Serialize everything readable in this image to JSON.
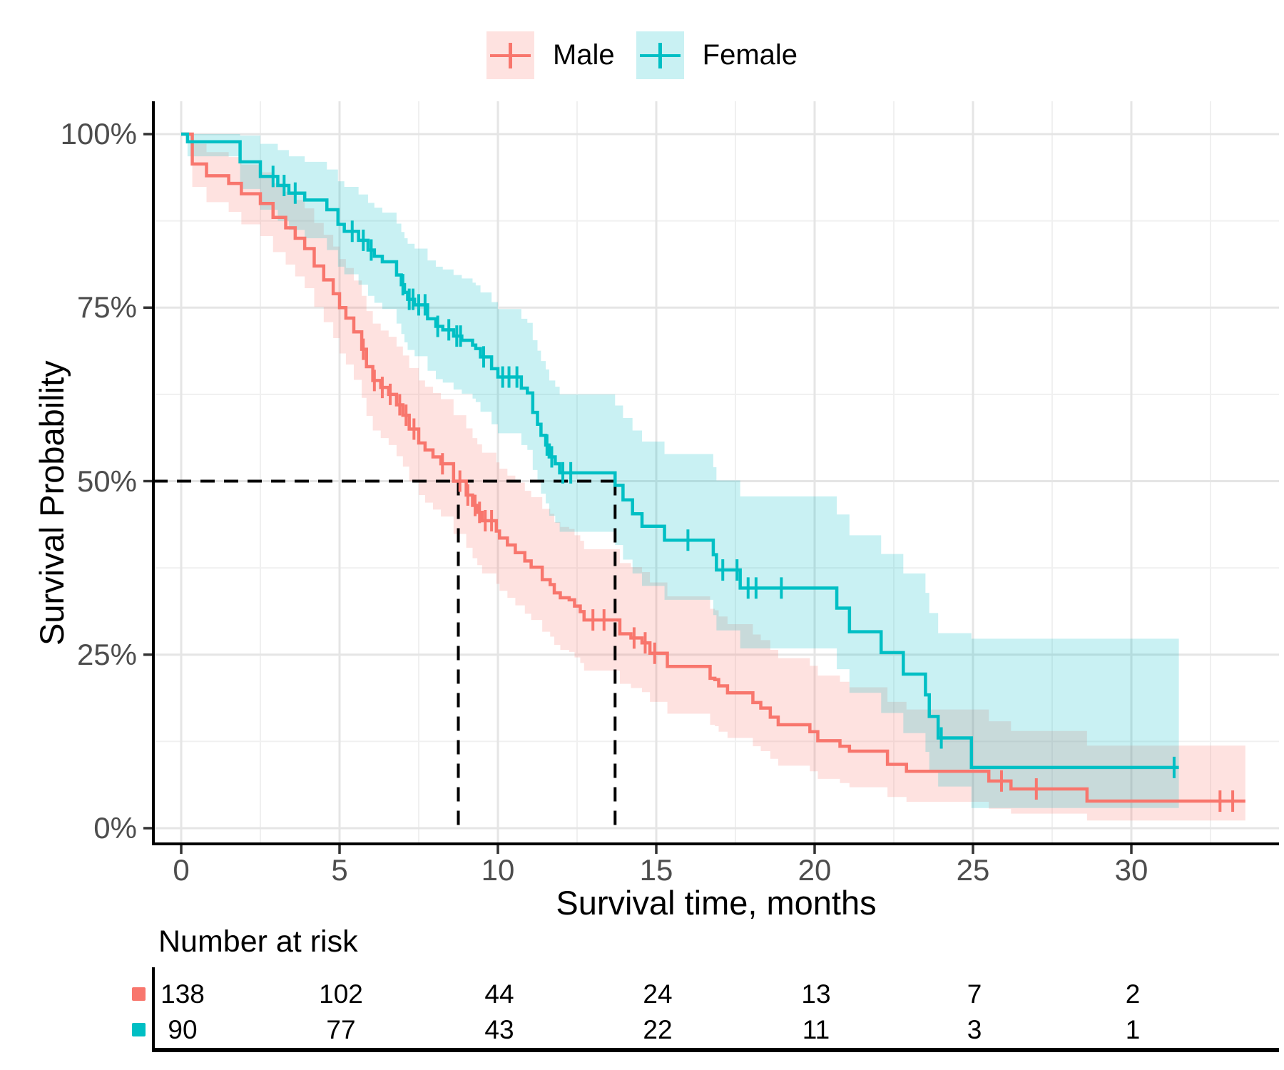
{
  "chart_data": {
    "type": "line",
    "variant": "kaplan-meier-step-with-confidence-bands",
    "title": "",
    "xlabel": "Survival time, months",
    "ylabel": "Survival Probability",
    "x_ticks": [
      0,
      5,
      10,
      15,
      20,
      25,
      30
    ],
    "x_minor_ticks": [
      2.5,
      7.5,
      12.5,
      17.5,
      22.5,
      27.5,
      32.5
    ],
    "y_ticks": [
      {
        "value": 0,
        "label": "0%"
      },
      {
        "value": 25,
        "label": "25%"
      },
      {
        "value": 50,
        "label": "50%"
      },
      {
        "value": 75,
        "label": "75%"
      },
      {
        "value": 100,
        "label": "100%"
      }
    ],
    "y_minor_ticks": [
      12.5,
      37.5,
      62.5,
      87.5
    ],
    "xlim": [
      -0.9,
      34.7
    ],
    "ylim": [
      -2.2,
      104.5
    ],
    "grid": "major-and-minor",
    "legend_position": "top-center",
    "medians": {
      "probability_pct": 50,
      "male_months": 8.75,
      "female_months": 13.7
    },
    "series": [
      {
        "name": "Male",
        "color": "#F8766D",
        "band_opacity": 0.21,
        "end_t": 33.6,
        "steps": [
          [
            0,
            100,
            100,
            100
          ],
          [
            0.35,
            95.7,
            92.4,
            98.6
          ],
          [
            0.8,
            94,
            90.2,
            97.4
          ],
          [
            1.5,
            92.9,
            88.8,
            96.7
          ],
          [
            1.9,
            91.4,
            87,
            95.6
          ],
          [
            2.5,
            90,
            85.3,
            94.5
          ],
          [
            2.9,
            88,
            83,
            92.9
          ],
          [
            3.3,
            86.5,
            81.2,
            91.7
          ],
          [
            3.6,
            85,
            79.5,
            90.5
          ],
          [
            3.9,
            83.5,
            77.8,
            89.3
          ],
          [
            4.2,
            81,
            75.1,
            87.2
          ],
          [
            4.5,
            79,
            72.9,
            85.5
          ],
          [
            4.8,
            77,
            70.6,
            83.8
          ],
          [
            5,
            75,
            68.4,
            82
          ],
          [
            5.2,
            73.5,
            66.8,
            80.7
          ],
          [
            5.45,
            71.5,
            64.6,
            78.9
          ],
          [
            5.7,
            69,
            62,
            76.7
          ],
          [
            5.85,
            66.5,
            59.4,
            74.5
          ],
          [
            6.05,
            64.5,
            57.3,
            72.7
          ],
          [
            6.3,
            63.5,
            56.2,
            71.7
          ],
          [
            6.55,
            62.5,
            55.2,
            70.8
          ],
          [
            6.8,
            61,
            53.6,
            69.4
          ],
          [
            7,
            59.5,
            52.1,
            68.1
          ],
          [
            7.2,
            57.5,
            50,
            66.3
          ],
          [
            7.5,
            55.5,
            48,
            64.5
          ],
          [
            7.7,
            54.5,
            46.9,
            63.6
          ],
          [
            7.95,
            53.5,
            45.9,
            62.7
          ],
          [
            8.2,
            52.5,
            44.9,
            61.8
          ],
          [
            8.6,
            50,
            42.4,
            59.5
          ],
          [
            9,
            48,
            40.4,
            57.6
          ],
          [
            9.2,
            46.5,
            38.9,
            56.2
          ],
          [
            9.35,
            45.5,
            37.9,
            55.3
          ],
          [
            9.5,
            44.3,
            36.7,
            54.1
          ],
          [
            9.95,
            42.8,
            35.2,
            52.7
          ],
          [
            10.05,
            41.8,
            34.2,
            51.8
          ],
          [
            10.3,
            40.8,
            33.2,
            50.8
          ],
          [
            10.55,
            39.7,
            32.1,
            49.8
          ],
          [
            10.85,
            38.5,
            30.9,
            48.6
          ],
          [
            11.05,
            37.6,
            30,
            47.7
          ],
          [
            11.4,
            35.8,
            28.3,
            46
          ],
          [
            11.65,
            35.1,
            27.6,
            45.3
          ],
          [
            11.78,
            33.9,
            26.4,
            44.1
          ],
          [
            11.97,
            33.2,
            25.7,
            43.4
          ],
          [
            12.25,
            32.9,
            25.4,
            43.1
          ],
          [
            12.42,
            32,
            24.6,
            42.2
          ],
          [
            12.6,
            31.2,
            23.8,
            41.4
          ],
          [
            12.72,
            30,
            22.7,
            40.2
          ],
          [
            13.85,
            28,
            20.8,
            38.2
          ],
          [
            14.2,
            27.4,
            20.2,
            37.6
          ],
          [
            14.55,
            26.7,
            19.6,
            36.9
          ],
          [
            14.8,
            25.2,
            18.2,
            35.4
          ],
          [
            15.35,
            23.3,
            16.5,
            33.4
          ],
          [
            16.7,
            21.6,
            14.9,
            31.6
          ],
          [
            16.85,
            21.4,
            14.7,
            31.4
          ],
          [
            16.97,
            20.5,
            13.9,
            30.5
          ],
          [
            17.25,
            19.5,
            13,
            29.4
          ],
          [
            18.05,
            18.1,
            11.8,
            27.9
          ],
          [
            18.3,
            17.3,
            11.1,
            27.1
          ],
          [
            18.6,
            16,
            10,
            25.7
          ],
          [
            18.85,
            14.9,
            9,
            24.5
          ],
          [
            19.85,
            13.9,
            8.2,
            23.4
          ],
          [
            20.1,
            12.6,
            7.1,
            22
          ],
          [
            20.8,
            11.8,
            6.5,
            21.1
          ],
          [
            21.1,
            11.1,
            5.9,
            20.3
          ],
          [
            22.3,
            9.2,
            4.5,
            18.2
          ],
          [
            22.9,
            8.2,
            3.8,
            17.1
          ],
          [
            25.5,
            6.8,
            2.8,
            15.4
          ],
          [
            26.2,
            5.65,
            2.1,
            14
          ],
          [
            28.6,
            3.9,
            1.1,
            11.9
          ]
        ],
        "censors": [
          [
            5.75,
            69
          ],
          [
            6.1,
            64.5
          ],
          [
            6.35,
            63.5
          ],
          [
            6.6,
            62.5
          ],
          [
            6.9,
            61
          ],
          [
            7.1,
            59.5
          ],
          [
            7.35,
            57.5
          ],
          [
            8.25,
            52.5
          ],
          [
            8.8,
            50
          ],
          [
            9.05,
            48
          ],
          [
            9.28,
            46.5
          ],
          [
            9.42,
            45.5
          ],
          [
            9.6,
            44.3
          ],
          [
            9.8,
            44.3
          ],
          [
            13,
            30
          ],
          [
            13.35,
            30
          ],
          [
            14.3,
            27.4
          ],
          [
            14.65,
            26.7
          ],
          [
            14.95,
            25.2
          ],
          [
            25.9,
            6.8
          ],
          [
            27,
            5.65
          ],
          [
            32.8,
            3.9
          ],
          [
            33.2,
            3.9
          ]
        ]
      },
      {
        "name": "Female",
        "color": "#00BFC4",
        "band_opacity": 0.21,
        "end_t": 31.5,
        "steps": [
          [
            0,
            100,
            100,
            100
          ],
          [
            0.2,
            98.9,
            96.8,
            100
          ],
          [
            1.86,
            96,
            92.1,
            99.8
          ],
          [
            2.5,
            93.9,
            89.1,
            98.6
          ],
          [
            3.05,
            92.6,
            87.5,
            97.7
          ],
          [
            3.4,
            91.5,
            86.2,
            96.8
          ],
          [
            3.9,
            90.5,
            85,
            96
          ],
          [
            4.6,
            89.1,
            83.3,
            94.9
          ],
          [
            4.95,
            87,
            80.9,
            93.2
          ],
          [
            5.15,
            86,
            79.8,
            92.4
          ],
          [
            5.6,
            84.7,
            78.3,
            91.3
          ],
          [
            5.9,
            83.3,
            76.7,
            90.1
          ],
          [
            6.1,
            82.4,
            75.7,
            89.4
          ],
          [
            6.35,
            81.6,
            74.8,
            88.7
          ],
          [
            6.8,
            79.7,
            72.7,
            87.1
          ],
          [
            6.95,
            78.3,
            71.2,
            85.9
          ],
          [
            7.05,
            77.2,
            70,
            85
          ],
          [
            7.15,
            76.2,
            68.9,
            84.2
          ],
          [
            7.37,
            75.4,
            68,
            83.5
          ],
          [
            7.78,
            73.4,
            65.9,
            81.8
          ],
          [
            8.04,
            72.3,
            64.7,
            80.9
          ],
          [
            8.26,
            71.8,
            64.2,
            80.5
          ],
          [
            8.6,
            70.9,
            63.2,
            79.7
          ],
          [
            8.86,
            70.3,
            62.6,
            79.2
          ],
          [
            9.2,
            69.6,
            61.9,
            78.6
          ],
          [
            9.3,
            69.1,
            61.4,
            78.2
          ],
          [
            9.45,
            67.9,
            60,
            77.2
          ],
          [
            9.8,
            66.2,
            58.2,
            75.8
          ],
          [
            10,
            65,
            56.9,
            74.8
          ],
          [
            10.74,
            63.4,
            55.2,
            73.4
          ],
          [
            10.93,
            62.7,
            54.5,
            72.8
          ],
          [
            11.1,
            59.9,
            51.6,
            70.3
          ],
          [
            11.25,
            58.2,
            49.8,
            68.8
          ],
          [
            11.36,
            56.6,
            48.2,
            67.3
          ],
          [
            11.51,
            55.2,
            46.8,
            66.1
          ],
          [
            11.62,
            53.5,
            45,
            64.5
          ],
          [
            11.81,
            52.5,
            44,
            63.6
          ],
          [
            11.95,
            51.2,
            42.7,
            62.5
          ],
          [
            13.7,
            49.4,
            40.8,
            60.9
          ],
          [
            13.95,
            47.3,
            38.7,
            59.1
          ],
          [
            14.25,
            45.3,
            36.7,
            57.3
          ],
          [
            14.55,
            43.5,
            34.9,
            55.7
          ],
          [
            15.26,
            41.5,
            32.9,
            53.9
          ],
          [
            16.8,
            39.4,
            30.7,
            52
          ],
          [
            16.9,
            37.2,
            28.5,
            50.1
          ],
          [
            17.65,
            34.6,
            25.9,
            47.8
          ],
          [
            20.7,
            31.7,
            22.9,
            45.2
          ],
          [
            21.1,
            28.3,
            19.5,
            42.2
          ],
          [
            22.1,
            25.3,
            16.6,
            39.5
          ],
          [
            22.8,
            22.2,
            13.7,
            36.7
          ],
          [
            23.5,
            19.2,
            11,
            33.9
          ],
          [
            23.62,
            16.1,
            8.4,
            31
          ],
          [
            23.9,
            13,
            6,
            28.1
          ],
          [
            24.95,
            8.75,
            2.9,
            27.3
          ]
        ],
        "censors": [
          [
            2.9,
            93.9
          ],
          [
            3.25,
            92.6
          ],
          [
            3.6,
            91.5
          ],
          [
            5.4,
            86
          ],
          [
            5.75,
            84.7
          ],
          [
            6,
            83.3
          ],
          [
            7,
            78.3
          ],
          [
            7.2,
            76.2
          ],
          [
            7.32,
            76.2
          ],
          [
            7.5,
            75.4
          ],
          [
            7.7,
            75.4
          ],
          [
            8.1,
            72.3
          ],
          [
            8.45,
            71.8
          ],
          [
            8.7,
            70.9
          ],
          [
            8.82,
            70.9
          ],
          [
            9.55,
            67.9
          ],
          [
            10.15,
            65
          ],
          [
            10.35,
            65
          ],
          [
            10.6,
            65
          ],
          [
            11.55,
            55.2
          ],
          [
            11.7,
            53.5
          ],
          [
            12.05,
            51.2
          ],
          [
            12.3,
            51.2
          ],
          [
            16,
            41.5
          ],
          [
            17.1,
            37.2
          ],
          [
            17.55,
            37.2
          ],
          [
            17.9,
            34.6
          ],
          [
            18.15,
            34.6
          ],
          [
            18.95,
            34.6
          ],
          [
            24,
            13
          ],
          [
            31.35,
            8.75
          ]
        ]
      }
    ],
    "risk_table": {
      "title": "Number at risk",
      "times": [
        0,
        5,
        10,
        15,
        20,
        25,
        30
      ],
      "rows": [
        {
          "name": "Male",
          "color": "#F8766D",
          "counts": [
            138,
            102,
            44,
            24,
            13,
            7,
            2
          ]
        },
        {
          "name": "Female",
          "color": "#00BFC4",
          "counts": [
            90,
            77,
            43,
            22,
            11,
            3,
            1
          ]
        }
      ]
    },
    "style": {
      "background": "#ffffff",
      "grid_major_color": "#e5e5e5",
      "grid_minor_color": "#f0f0f0",
      "axis_line_color": "#000000",
      "tick_label_color": "#4d4d4d",
      "median_line_color": "#000000"
    }
  }
}
